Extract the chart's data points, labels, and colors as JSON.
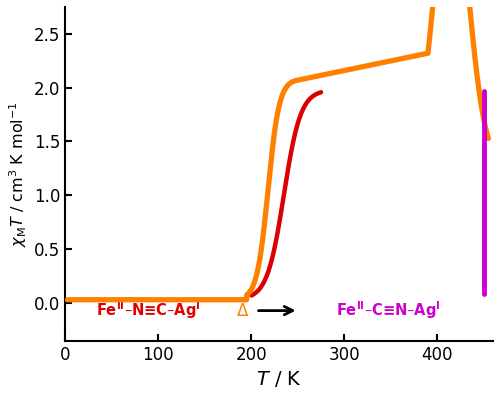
{
  "title": "",
  "xlabel": "$\\mathit{T}$ / K",
  "ylabel": "$\\chi_{\\mathrm{M}}\\mathit{T}$ / cm$^{3}$ K mol$^{-1}$",
  "xlim": [
    0,
    460
  ],
  "ylim": [
    -0.35,
    2.75
  ],
  "yticks": [
    0.0,
    0.5,
    1.0,
    1.5,
    2.0,
    2.5
  ],
  "xticks": [
    0,
    100,
    200,
    300,
    400
  ],
  "orange_color": "#FF8000",
  "red_color": "#DD0000",
  "magenta_color": "#CC00CC",
  "background": "#ffffff",
  "label_red": "Fe$^{\\mathbf{II}}$–N≡C–Ag$^{\\mathbf{I}}$",
  "label_magenta": "Fe$^{\\mathbf{II}}$–C≡N–Ag$^{\\mathbf{I}}$",
  "label_delta": "$\\Delta$"
}
